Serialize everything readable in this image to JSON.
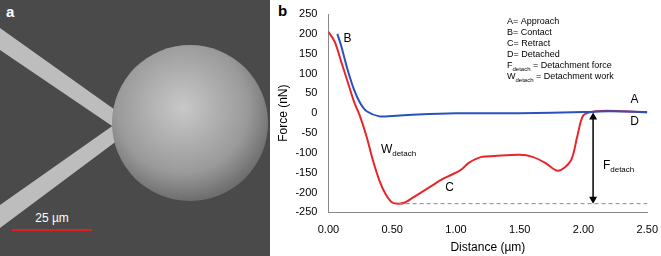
{
  "panel_a": {
    "label": "a",
    "scale_bar_label": "25 µm"
  },
  "chart_data": {
    "panel_label": "b",
    "type": "line",
    "x_label": "Distance (µm)",
    "y_label": "Force (nN)",
    "xlim": [
      0,
      2.5
    ],
    "xticks": [
      {
        "value": 0,
        "label": "0.00"
      },
      {
        "value": 0.5,
        "label": "0.50"
      },
      {
        "value": 1,
        "label": "1.00"
      },
      {
        "value": 1.5,
        "label": "1.50"
      },
      {
        "value": 2,
        "label": "2.00"
      },
      {
        "value": 2.5,
        "label": "2.50"
      }
    ],
    "ylim": [
      -250,
      250
    ],
    "yticks": [
      -250,
      -200,
      -150,
      -100,
      -50,
      0,
      50,
      100,
      150,
      200,
      250
    ],
    "grid": false,
    "series": [
      {
        "color": "#2a52be",
        "x": [
          0.07,
          0.1,
          0.15,
          0.2,
          0.25,
          0.3,
          0.4,
          0.5,
          0.7,
          1.0,
          1.5,
          2.0,
          2.2,
          2.5
        ],
        "values": [
          200,
          170,
          110,
          60,
          25,
          5,
          -8,
          -7,
          -3,
          0,
          0,
          3,
          5,
          3
        ]
      },
      {
        "color": "#e8262a",
        "x": [
          0,
          0.05,
          0.1,
          0.15,
          0.2,
          0.25,
          0.3,
          0.35,
          0.4,
          0.45,
          0.5,
          0.55,
          0.6,
          0.7,
          0.8,
          0.9,
          1.0,
          1.05,
          1.1,
          1.2,
          1.3,
          1.5,
          1.6,
          1.7,
          1.8,
          1.9,
          1.95,
          2.0,
          2.1,
          2.3,
          2.5
        ],
        "values": [
          205,
          180,
          130,
          80,
          30,
          -10,
          -60,
          -120,
          -170,
          -205,
          -225,
          -228,
          -225,
          -205,
          -185,
          -165,
          -150,
          -140,
          -125,
          -110,
          -108,
          -105,
          -110,
          -125,
          -145,
          -120,
          -60,
          -5,
          5,
          5,
          2
        ]
      }
    ],
    "annotations": [
      {
        "text": "A"
      },
      {
        "text": "B"
      },
      {
        "text": "C"
      },
      {
        "text": "D"
      },
      {
        "text": "W",
        "sub": "detach"
      },
      {
        "text": "F",
        "sub": "detach"
      }
    ],
    "key_box": [
      {
        "text": "A= Approach"
      },
      {
        "text": "B= Contact"
      },
      {
        "text": "C= Retract"
      },
      {
        "text": "D= Detached"
      },
      {
        "text": "F",
        "sub": "detach",
        "after": " = Detachment force"
      },
      {
        "text": "W",
        "sub": "detach",
        "after": " = Detachment work"
      }
    ]
  }
}
